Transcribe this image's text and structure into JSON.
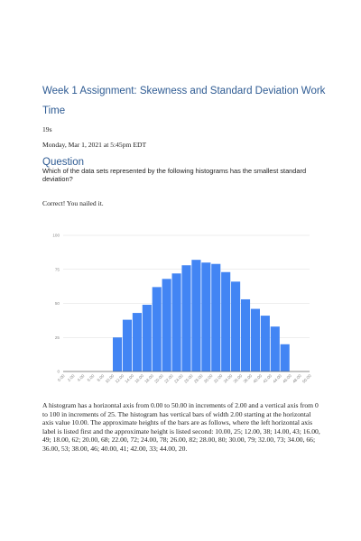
{
  "doc": {
    "title": "Week 1 Assignment: Skewness and Standard Deviation Work",
    "time_heading": "Time",
    "duration": "19s",
    "datetime": "Monday, Mar 1, 2021 at 5:45pm EDT",
    "question_heading": "Question",
    "question_text": "Which of the data sets represented by the following histograms has the smallest standard deviation?",
    "feedback": "Correct! You nailed it.",
    "description": "A histogram has a horizontal axis from 0.00 to 50.00 in increments of 2.00 and a vertical axis from 0 to 100 in increments of 25. The histogram has vertical bars of width 2.00 starting at the horizontal axis value 10.00. The approximate heights of the bars are as follows, where the left horizontal axis label is listed first and the approximate height is listed second: 10.00, 25; 12.00, 38; 14.00, 43; 16.00, 49; 18.00, 62; 20.00, 68; 22.00, 72; 24.00, 78; 26.00, 82; 28.00, 80; 30.00, 79; 32.00, 73; 34.00, 66; 36.00, 53; 38.00, 46; 40.00, 41; 42.00, 33; 44.00, 20."
  },
  "colors": {
    "heading": "#2e5b93",
    "bar": "#4285f4",
    "grid": "#dddddd"
  },
  "chart_data": {
    "type": "bar",
    "x_bin_starts": [
      10,
      12,
      14,
      16,
      18,
      20,
      22,
      24,
      26,
      28,
      30,
      32,
      34,
      36,
      38,
      40,
      42,
      44
    ],
    "bin_width": 2,
    "values": [
      25,
      38,
      43,
      49,
      62,
      68,
      72,
      78,
      82,
      80,
      79,
      73,
      66,
      53,
      46,
      41,
      33,
      20
    ],
    "xlim": [
      0,
      50
    ],
    "ylim": [
      0,
      100
    ],
    "x_ticks": [
      "0.00",
      "2.00",
      "4.00",
      "6.00",
      "8.00",
      "10.00",
      "12.00",
      "14.00",
      "16.00",
      "18.00",
      "20.00",
      "22.00",
      "24.00",
      "26.00",
      "28.00",
      "30.00",
      "32.00",
      "34.00",
      "36.00",
      "38.00",
      "40.00",
      "42.00",
      "44.00",
      "46.00",
      "48.00",
      "50.00"
    ],
    "y_ticks": [
      "0",
      "25",
      "50",
      "75",
      "100"
    ],
    "grid": true,
    "title": "",
    "xlabel": "",
    "ylabel": ""
  }
}
